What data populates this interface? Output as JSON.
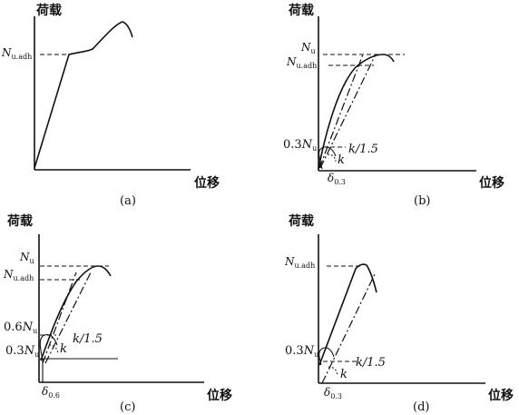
{
  "panels": [
    {
      "id": "a",
      "y_axis_label": "荷载",
      "x_axis_label": "位移",
      "caption": "(a)",
      "n_label": {
        "main": "N",
        "sub": "u.adh"
      }
    },
    {
      "id": "b",
      "y_axis_label": "荷载",
      "x_axis_label": "位移",
      "caption": "(b)",
      "nu_label": {
        "main": "N",
        "sub": "u"
      },
      "nadh_label": {
        "main": "N",
        "sub": "u.adh"
      },
      "low_label": {
        "pre": "0.3",
        "main": "N",
        "sub": "u"
      },
      "k_label": "k",
      "k15_label": "k/1.5",
      "delta_label": {
        "main": "δ",
        "sub": "0.3"
      }
    },
    {
      "id": "c",
      "y_axis_label": "荷载",
      "x_axis_label": "位移",
      "caption": "(c)",
      "nu_label": {
        "main": "N",
        "sub": "u"
      },
      "nadh_label": {
        "main": "N",
        "sub": "u.adh"
      },
      "mid_label": {
        "pre": "0.6",
        "main": "N",
        "sub": "u"
      },
      "low_label": {
        "pre": "0.3",
        "main": "N",
        "sub": "u"
      },
      "k_label": "k",
      "k15_label": "k/1.5",
      "delta_label": {
        "main": "δ",
        "sub": "0.6"
      }
    },
    {
      "id": "d",
      "y_axis_label": "荷载",
      "x_axis_label": "位移",
      "caption": "(d)",
      "nadh_label": {
        "main": "N",
        "sub": "u.adh"
      },
      "low_label": {
        "pre": "0.3",
        "main": "N",
        "sub": "u"
      },
      "k_label": "k",
      "k15_label": "k/1.5",
      "delta_label": {
        "main": "δ",
        "sub": "0.3"
      }
    }
  ]
}
